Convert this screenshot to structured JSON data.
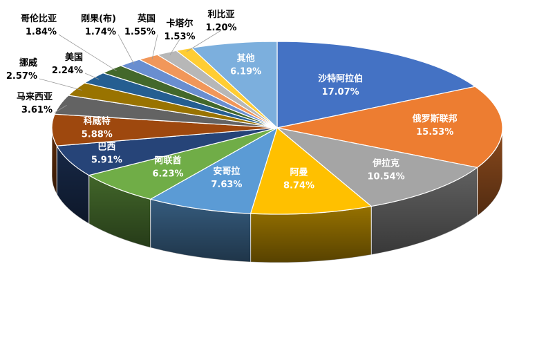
{
  "chart_data": {
    "type": "pie",
    "title": "",
    "slices": [
      {
        "label": "沙特阿拉伯",
        "value": 17.07,
        "value_label": "17.07%",
        "color": "#4472C4",
        "text_color": "#ffffff"
      },
      {
        "label": "俄罗斯联邦",
        "value": 15.53,
        "value_label": "15.53%",
        "color": "#ED7D31",
        "text_color": "#ffffff"
      },
      {
        "label": "伊拉克",
        "value": 10.54,
        "value_label": "10.54%",
        "color": "#A5A5A5",
        "text_color": "#ffffff"
      },
      {
        "label": "阿曼",
        "value": 8.74,
        "value_label": "8.74%",
        "color": "#FFC000",
        "text_color": "#ffffff"
      },
      {
        "label": "安哥拉",
        "value": 7.63,
        "value_label": "7.63%",
        "color": "#5B9BD5",
        "text_color": "#ffffff"
      },
      {
        "label": "阿联酋",
        "value": 6.23,
        "value_label": "6.23%",
        "color": "#70AD47",
        "text_color": "#ffffff"
      },
      {
        "label": "巴西",
        "value": 5.91,
        "value_label": "5.91%",
        "color": "#264478",
        "text_color": "#ffffff"
      },
      {
        "label": "科威特",
        "value": 5.88,
        "value_label": "5.88%",
        "color": "#9E480E",
        "text_color": "#ffffff"
      },
      {
        "label": "马来西亚",
        "value": 3.61,
        "value_label": "3.61%",
        "color": "#636363",
        "text_color": "#000000"
      },
      {
        "label": "挪威",
        "value": 2.57,
        "value_label": "2.57%",
        "color": "#997300",
        "text_color": "#000000"
      },
      {
        "label": "美国",
        "value": 2.24,
        "value_label": "2.24%",
        "color": "#255E91",
        "text_color": "#000000"
      },
      {
        "label": "哥伦比亚",
        "value": 1.84,
        "value_label": "1.84%",
        "color": "#43682B",
        "text_color": "#000000"
      },
      {
        "label": "刚果(布)",
        "value": 1.74,
        "value_label": "1.74%",
        "color": "#698ED0",
        "text_color": "#000000"
      },
      {
        "label": "英国",
        "value": 1.55,
        "value_label": "1.55%",
        "color": "#F1975A",
        "text_color": "#000000"
      },
      {
        "label": "卡塔尔",
        "value": 1.53,
        "value_label": "1.53%",
        "color": "#B7B7B7",
        "text_color": "#000000"
      },
      {
        "label": "利比亚",
        "value": 1.2,
        "value_label": "1.20%",
        "color": "#FFCD33",
        "text_color": "#000000"
      },
      {
        "label": "其他",
        "value": 6.19,
        "value_label": "6.19%",
        "color": "#7CAFDD",
        "text_color": "#ffffff"
      }
    ]
  }
}
